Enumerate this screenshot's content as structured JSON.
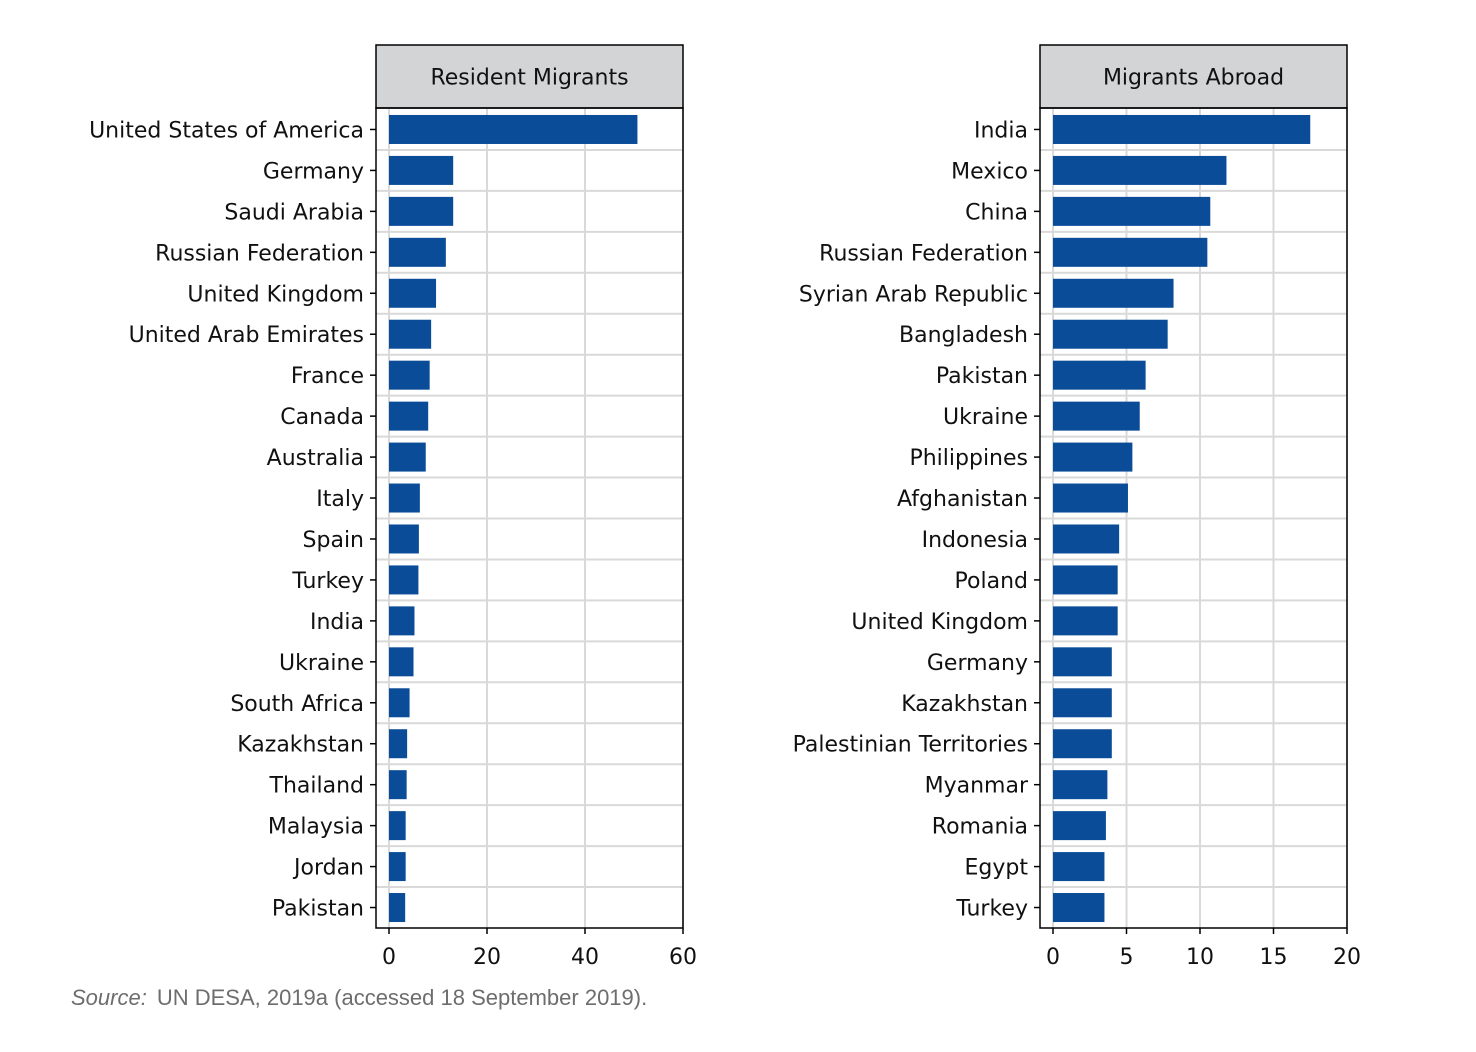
{
  "chart_data": [
    {
      "type": "bar",
      "orientation": "horizontal",
      "title": "Resident Migrants",
      "categories": [
        "United States of America",
        "Germany",
        "Saudi Arabia",
        "Russian Federation",
        "United Kingdom",
        "United Arab Emirates",
        "France",
        "Canada",
        "Australia",
        "Italy",
        "Spain",
        "Turkey",
        "India",
        "Ukraine",
        "South Africa",
        "Kazakhstan",
        "Thailand",
        "Malaysia",
        "Jordan",
        "Pakistan"
      ],
      "values": [
        50.7,
        13.1,
        13.1,
        11.6,
        9.6,
        8.6,
        8.3,
        8.0,
        7.5,
        6.3,
        6.1,
        6.0,
        5.2,
        5.0,
        4.2,
        3.7,
        3.6,
        3.4,
        3.4,
        3.3
      ],
      "xlim": [
        0,
        60
      ],
      "xticks": [
        "0",
        "20",
        "40",
        "60"
      ],
      "grid": true,
      "color": "#0b4c99"
    },
    {
      "type": "bar",
      "orientation": "horizontal",
      "title": "Migrants Abroad",
      "categories": [
        "India",
        "Mexico",
        "China",
        "Russian Federation",
        "Syrian Arab Republic",
        "Bangladesh",
        "Pakistan",
        "Ukraine",
        "Philippines",
        "Afghanistan",
        "Indonesia",
        "Poland",
        "United Kingdom",
        "Germany",
        "Kazakhstan",
        "Palestinian Territories",
        "Myanmar",
        "Romania",
        "Egypt",
        "Turkey"
      ],
      "values": [
        17.5,
        11.8,
        10.7,
        10.5,
        8.2,
        7.8,
        6.3,
        5.9,
        5.4,
        5.1,
        4.5,
        4.4,
        4.4,
        4.0,
        4.0,
        4.0,
        3.7,
        3.6,
        3.5,
        3.5
      ],
      "xlim": [
        0,
        20
      ],
      "xticks": [
        "0",
        "5",
        "10",
        "15",
        "20"
      ],
      "grid": true,
      "color": "#0b4c99"
    }
  ],
  "source": {
    "label": "Source:",
    "text": "UN DESA, 2019a (accessed 18 September 2019)."
  }
}
